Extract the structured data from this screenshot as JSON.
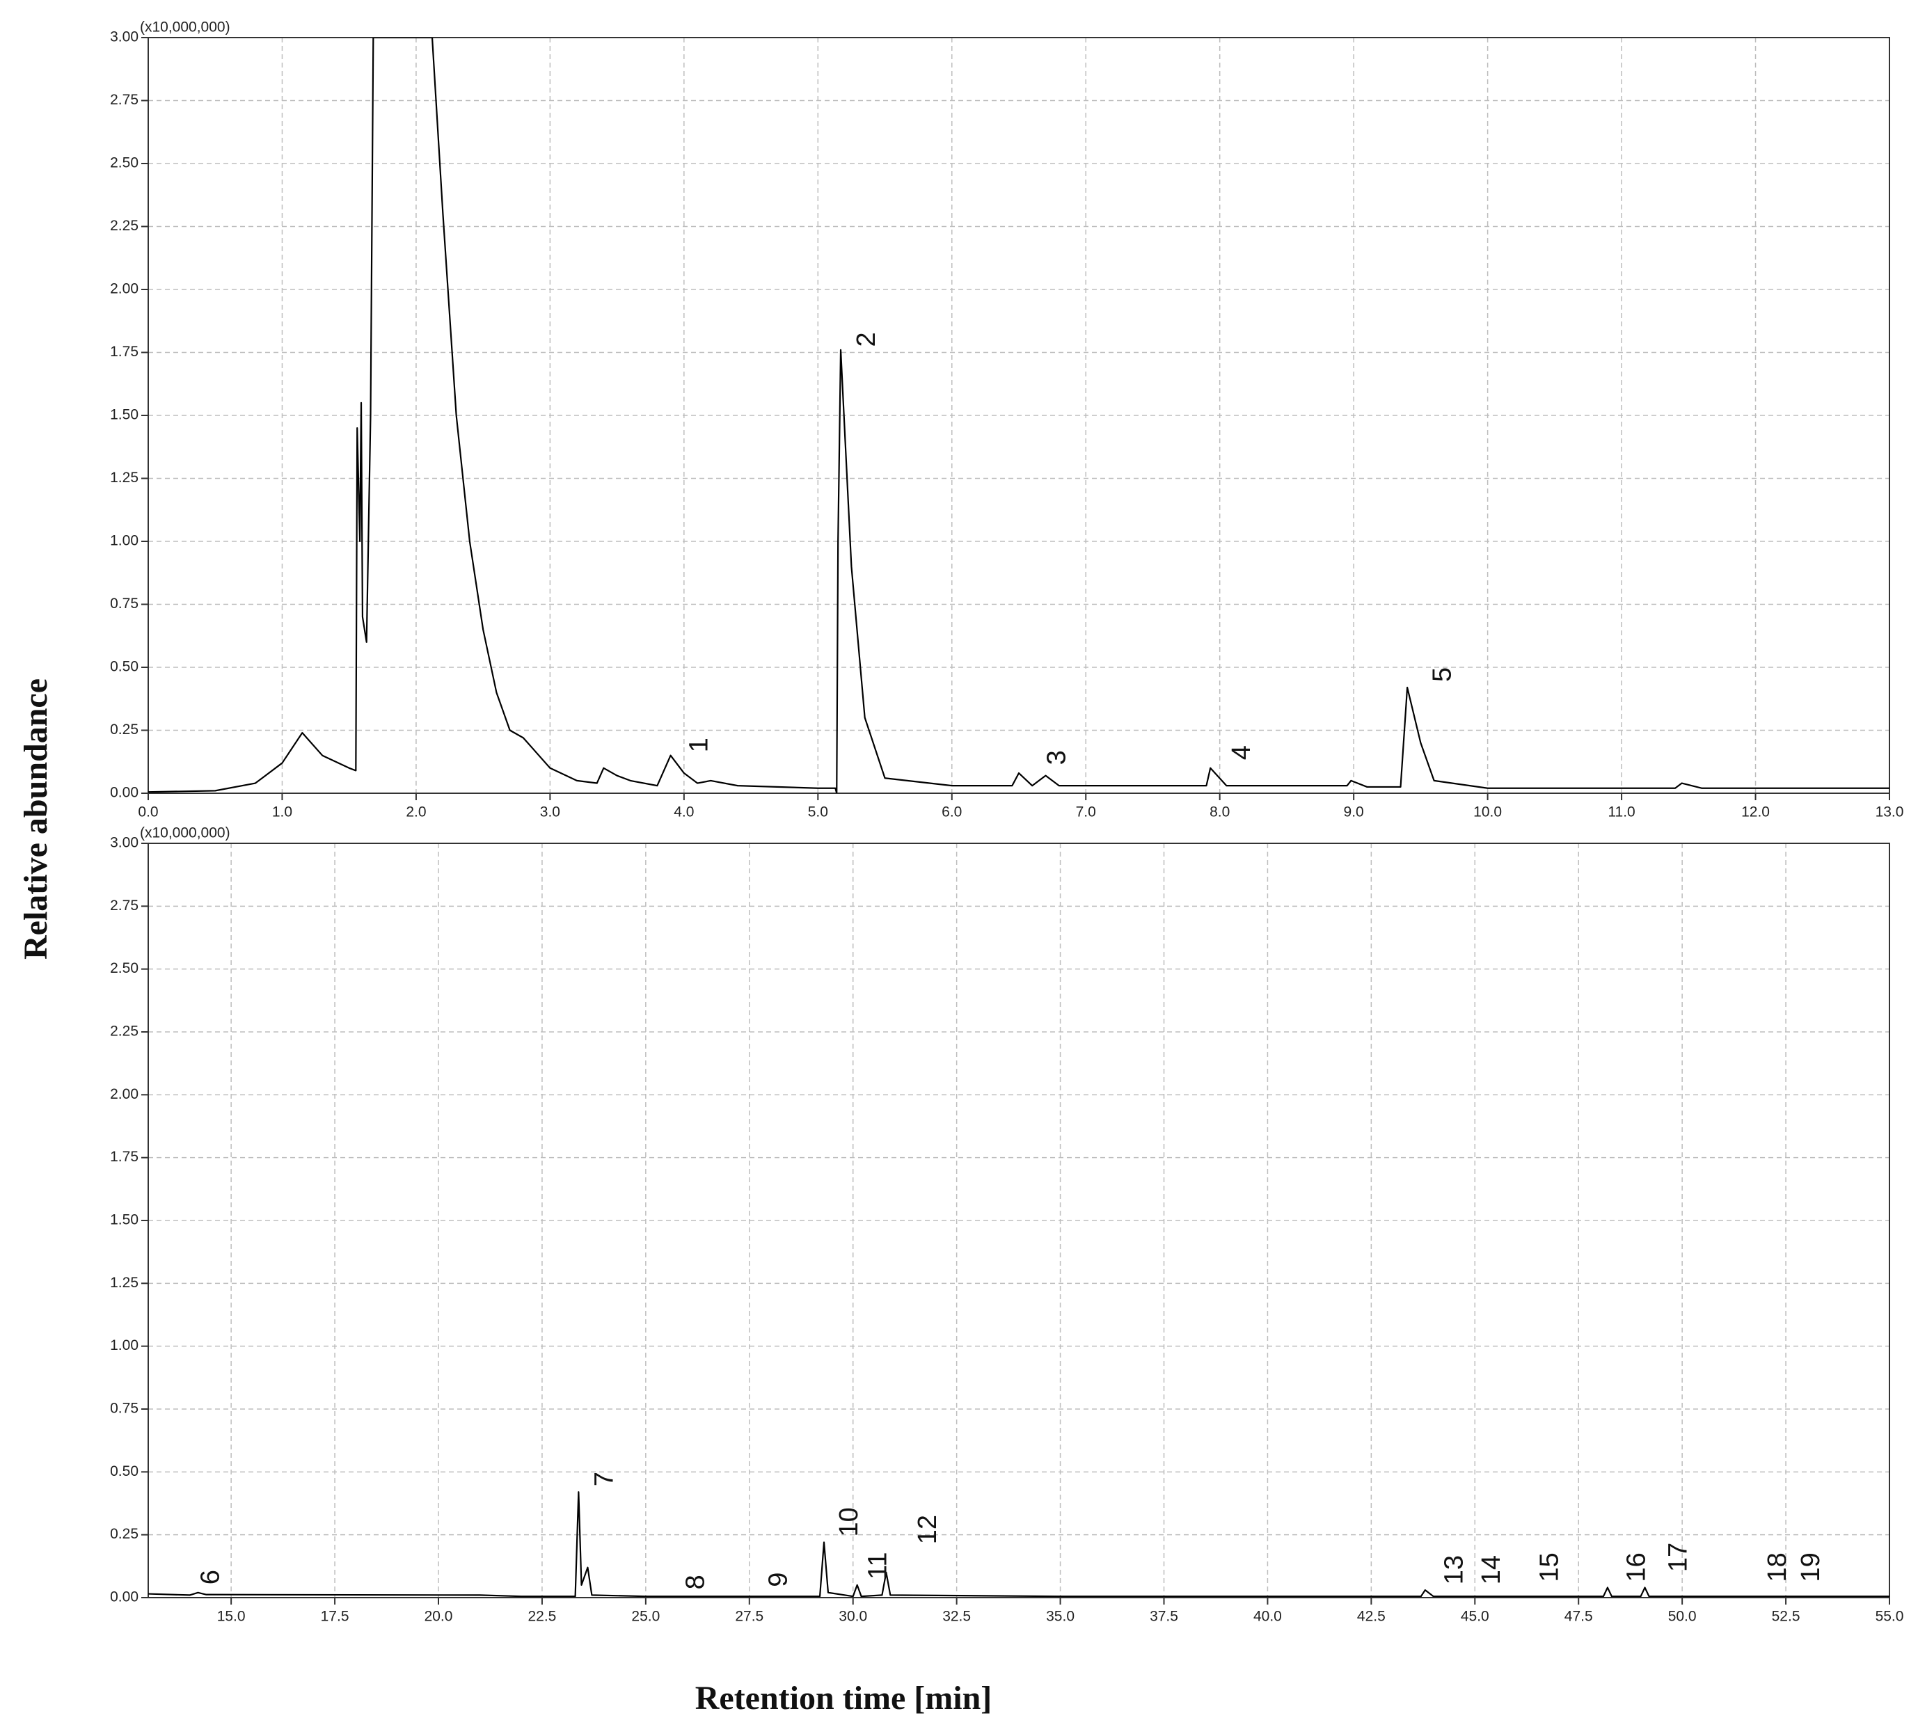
{
  "figure": {
    "ylabel": "Relative abundance",
    "xlabel": "Retention time [min]"
  },
  "chart_data": [
    {
      "type": "line",
      "color": "#000000",
      "grid": true,
      "y_scale_label": "(x10,000,000)",
      "xlim": [
        0,
        13
      ],
      "ylim": [
        0,
        3
      ],
      "xticks": [
        {
          "value": 0,
          "label": "0.0"
        },
        {
          "value": 1,
          "label": "1.0"
        },
        {
          "value": 2,
          "label": "2.0"
        },
        {
          "value": 3,
          "label": "3.0"
        },
        {
          "value": 4,
          "label": "4.0"
        },
        {
          "value": 5,
          "label": "5.0"
        },
        {
          "value": 6,
          "label": "6.0"
        },
        {
          "value": 7,
          "label": "7.0"
        },
        {
          "value": 8,
          "label": "8.0"
        },
        {
          "value": 9,
          "label": "9.0"
        },
        {
          "value": 10,
          "label": "10.0"
        },
        {
          "value": 11,
          "label": "11.0"
        },
        {
          "value": 12,
          "label": "12.0"
        },
        {
          "value": 13,
          "label": "13.0"
        }
      ],
      "yticks": [
        {
          "value": 0,
          "label": "0.00"
        },
        0.25,
        {
          "value": 0.5,
          "label": "0.50"
        },
        0.75,
        {
          "value": 1,
          "label": "1.00"
        },
        1.25,
        {
          "value": 1.5,
          "label": "1.50"
        },
        1.75,
        {
          "value": 2,
          "label": "2.00"
        },
        2.25,
        {
          "value": 2.5,
          "label": "2.50"
        },
        2.75,
        {
          "value": 3,
          "label": "3.00"
        }
      ],
      "x": [
        0.0,
        0.5,
        0.8,
        1.0,
        1.15,
        1.3,
        1.5,
        1.55,
        1.56,
        1.58,
        1.59,
        1.6,
        1.63,
        1.66,
        1.68,
        2.12,
        2.2,
        2.3,
        2.4,
        2.5,
        2.6,
        2.7,
        2.8,
        2.9,
        3.0,
        3.2,
        3.35,
        3.4,
        3.5,
        3.6,
        3.8,
        3.9,
        4.0,
        4.1,
        4.2,
        4.4,
        5.0,
        5.13,
        5.14,
        5.15,
        5.17,
        5.25,
        5.35,
        5.5,
        6.0,
        6.45,
        6.5,
        6.6,
        6.7,
        6.8,
        7.9,
        7.93,
        8.05,
        8.95,
        8.98,
        9.1,
        9.35,
        9.4,
        9.5,
        9.6,
        10.0,
        11.4,
        11.45,
        11.6,
        13.0
      ],
      "values": [
        0.005,
        0.01,
        0.04,
        0.12,
        0.24,
        0.15,
        0.1,
        0.09,
        1.45,
        1.0,
        1.55,
        0.7,
        0.6,
        1.5,
        3.0,
        3.0,
        2.3,
        1.5,
        1.0,
        0.65,
        0.4,
        0.25,
        0.22,
        0.16,
        0.1,
        0.05,
        0.04,
        0.1,
        0.07,
        0.05,
        0.03,
        0.15,
        0.08,
        0.04,
        0.05,
        0.03,
        0.02,
        0.02,
        0.0,
        1.0,
        1.76,
        0.9,
        0.3,
        0.06,
        0.03,
        0.03,
        0.08,
        0.03,
        0.07,
        0.03,
        0.03,
        0.1,
        0.03,
        0.03,
        0.05,
        0.025,
        0.025,
        0.42,
        0.2,
        0.05,
        0.02,
        0.02,
        0.04,
        0.02,
        0.02
      ],
      "annotations": [
        {
          "text": "1",
          "x": 4.05,
          "y": 0.14
        },
        {
          "text": "2",
          "x": 5.3,
          "y": 1.75
        },
        {
          "text": "3",
          "x": 6.72,
          "y": 0.09
        },
        {
          "text": "4",
          "x": 8.1,
          "y": 0.11
        },
        {
          "text": "5",
          "x": 9.6,
          "y": 0.42
        }
      ]
    },
    {
      "type": "line",
      "color": "#000000",
      "grid": true,
      "y_scale_label": "(x10,000,000)",
      "xlim": [
        13,
        55
      ],
      "ylim": [
        0,
        3
      ],
      "xticks": [
        {
          "value": 15,
          "label": "15.0"
        },
        17.5,
        {
          "value": 20,
          "label": "20.0"
        },
        22.5,
        {
          "value": 25,
          "label": "25.0"
        },
        27.5,
        {
          "value": 30,
          "label": "30.0"
        },
        32.5,
        {
          "value": 35,
          "label": "35.0"
        },
        37.5,
        {
          "value": 40,
          "label": "40.0"
        },
        42.5,
        {
          "value": 45,
          "label": "45.0"
        },
        47.5,
        {
          "value": 50,
          "label": "50.0"
        },
        52.5,
        {
          "value": 55,
          "label": "55.0"
        }
      ],
      "yticks": [
        {
          "value": 0,
          "label": "0.00"
        },
        0.25,
        {
          "value": 0.5,
          "label": "0.50"
        },
        0.75,
        {
          "value": 1,
          "label": "1.00"
        },
        1.25,
        {
          "value": 1.5,
          "label": "1.50"
        },
        1.75,
        {
          "value": 2,
          "label": "2.00"
        },
        2.25,
        {
          "value": 2.5,
          "label": "2.50"
        },
        2.75,
        {
          "value": 3,
          "label": "3.00"
        }
      ],
      "x": [
        13.0,
        14.0,
        14.2,
        14.4,
        21.0,
        22.0,
        23.3,
        23.38,
        23.45,
        23.6,
        23.7,
        25.0,
        29.2,
        29.3,
        29.4,
        30.0,
        30.1,
        30.2,
        30.7,
        30.8,
        30.9,
        35.0,
        43.7,
        43.8,
        44.0,
        48.1,
        48.2,
        48.3,
        49.0,
        49.1,
        49.2,
        55.0
      ],
      "values": [
        0.015,
        0.01,
        0.02,
        0.012,
        0.01,
        0.005,
        0.005,
        0.42,
        0.05,
        0.12,
        0.01,
        0.005,
        0.005,
        0.22,
        0.02,
        0.005,
        0.05,
        0.005,
        0.01,
        0.1,
        0.01,
        0.005,
        0.005,
        0.03,
        0.005,
        0.005,
        0.04,
        0.005,
        0.005,
        0.04,
        0.005,
        0.005
      ],
      "annotations": [
        {
          "text": "6",
          "x": 14.3,
          "y": 0.03
        },
        {
          "text": "7",
          "x": 23.8,
          "y": 0.42
        },
        {
          "text": "8",
          "x": 26.0,
          "y": 0.01
        },
        {
          "text": "9",
          "x": 28.0,
          "y": 0.02
        },
        {
          "text": "10",
          "x": 29.7,
          "y": 0.22
        },
        {
          "text": "11",
          "x": 30.4,
          "y": 0.05
        },
        {
          "text": "12",
          "x": 31.6,
          "y": 0.19
        },
        {
          "text": "13",
          "x": 44.3,
          "y": 0.03
        },
        {
          "text": "14",
          "x": 45.2,
          "y": 0.03
        },
        {
          "text": "15",
          "x": 46.6,
          "y": 0.04
        },
        {
          "text": "16",
          "x": 48.7,
          "y": 0.04
        },
        {
          "text": "17",
          "x": 49.7,
          "y": 0.08
        },
        {
          "text": "18",
          "x": 52.1,
          "y": 0.04
        },
        {
          "text": "19",
          "x": 52.9,
          "y": 0.04
        }
      ]
    }
  ]
}
